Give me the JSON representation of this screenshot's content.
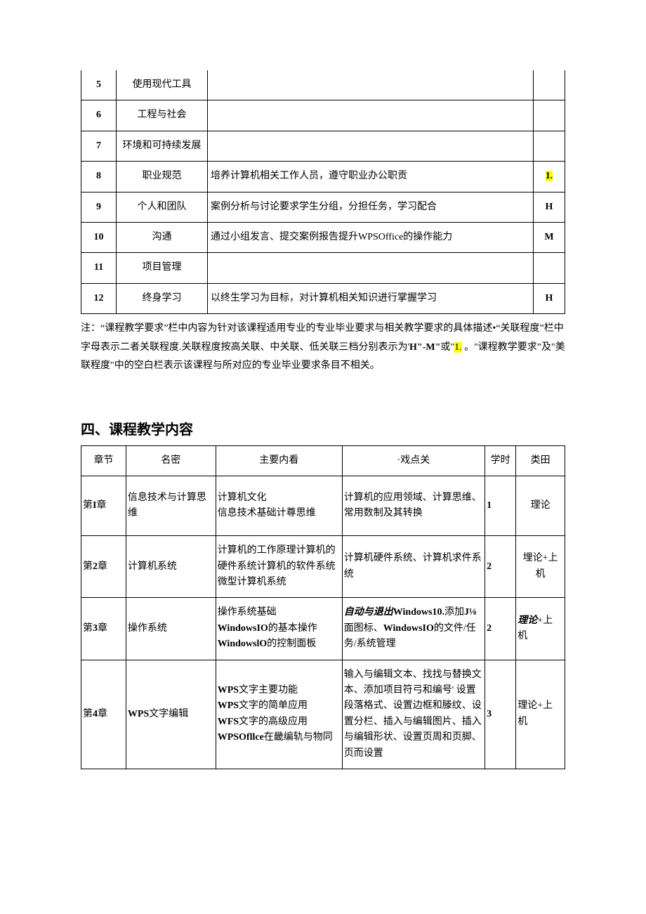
{
  "table1": {
    "rows": [
      {
        "n": "5",
        "name": "使用现代工具",
        "req": "",
        "lvl": ""
      },
      {
        "n": "6",
        "name": "工程与社会",
        "req": "",
        "lvl": ""
      },
      {
        "n": "7",
        "name": "环境和可持续发展",
        "req": "",
        "lvl": ""
      },
      {
        "n": "8",
        "name": "职业规范",
        "req": "培养计算机相关工作人员，遵守职业办公职贡",
        "lvl": "1.",
        "hl": true
      },
      {
        "n": "9",
        "name": "个人和团队",
        "req": "案例分析与讨论要求学生分组，分担任务，学习配合",
        "lvl": "H"
      },
      {
        "n": "10",
        "name": "沟通",
        "req": "通过小组发言、提交案例报告提升WPSOffice的操作能力",
        "lvl": "M"
      },
      {
        "n": "11",
        "name": "项目管理",
        "req": "",
        "lvl": ""
      },
      {
        "n": "12",
        "name": "终身学习",
        "req": "以终生学习为目标，对计算机相关知识进行掌握学习",
        "lvl": "H"
      }
    ]
  },
  "note": {
    "part1": "注：“课程教学要求”栏中内容为针对该课程适用专业的专业毕业要求与相关教学要求的具体描述•“关联程度”栏中字母表示二者关联程度.关联程度按高关联、中关联、低关联三档分别表示为'",
    "bold1": "H\"-M\"",
    "part2": "或\"",
    "hl": "1.",
    "part3": " 。\"课程教学要求”及\"美联程度\"中的空白栏表示该课程与所对应的专业毕业要求条目不相关。"
  },
  "section_title": "四、课程教学内容",
  "table2": {
    "headers": [
      "章节",
      "名密",
      "主要内看",
      "·戏点关",
      "学时",
      "类田"
    ],
    "rows": [
      {
        "ch": "第I章",
        "ch_bold_idx": 1,
        "name": "信息技术与计算思维",
        "main": "计算机文化\n信息技术基础计尊思维",
        "key": "计算机的应用领域、计算思维、常用数制及其转换",
        "hours": "1",
        "type": "理论",
        "type_center": true
      },
      {
        "ch": "第2章",
        "name": "计算机系统",
        "main": "计算机的工作原理计算机的硬件系统计算机的软件系统微型计算机系统",
        "key": "计算机硬件系统、计算机求件系统",
        "hours": "2",
        "type": "埋论+上机",
        "type_center": true
      },
      {
        "ch": "第3章",
        "name": "操作系统",
        "main_html": "操作系统基础<br><b>WindowsIO</b>的基本操作<br><b>WindowslO</b>的控制面板",
        "key_html": "<i><b>自动与退出</b></i><b>Windows10.</b>添加<b>J⅛</b>面图标、<b>WindowsIO</b>的文件/任务/系统管理",
        "hours": "2",
        "type_html": "<i><b>理论</b></i>+上机"
      },
      {
        "ch": "第4章",
        "name": "WPS文字编辑",
        "name_bold": "WPS",
        "main_html": "<b>WPS</b>文字主要功能<br><b>WPS</b>文字的简单应用<br><b>WFS</b>文字的高级应用<br><b>WPSOfllce</b>在畿编轨与物同",
        "key": "输入与编辑文本、找找与替换文本、添加项目符弓和编号' 设置段落格式、设置边框和滕纹、设置分栏、插入与编辑图片、插入与编辑形状、设置页周和页脚、页而设置",
        "hours": "3",
        "type": "理论+上机"
      }
    ]
  }
}
